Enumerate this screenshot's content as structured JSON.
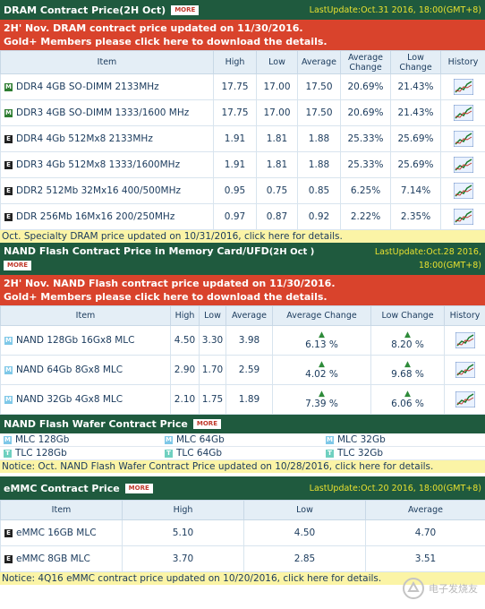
{
  "dram": {
    "title": "DRAM Contract Price(2H Oct)",
    "more": "MORE",
    "update": "LastUpdate:Oct.31 2016, 18:00(GMT+8)",
    "banner_line1_pre": "2H' Nov. DRAM contract price updated on ",
    "banner_line1_date": "11/30/2016.",
    "banner_line2": "Gold+ Members please click here to download the details.",
    "headers": [
      "Item",
      "High",
      "Low",
      "Average",
      "Average Change",
      "Low Change",
      "History"
    ],
    "rows": [
      {
        "icon": "M",
        "item": "DDR4 4GB SO-DIMM 2133MHz",
        "high": "17.75",
        "low": "17.00",
        "avg": "17.50",
        "avgchg": "20.69%",
        "lowchg": "21.43%"
      },
      {
        "icon": "M",
        "item": "DDR3 4GB SO-DIMM 1333/1600 MHz",
        "high": "17.75",
        "low": "17.00",
        "avg": "17.50",
        "avgchg": "20.69%",
        "lowchg": "21.43%"
      },
      {
        "icon": "E",
        "item": "DDR4 4Gb 512Mx8 2133MHz",
        "high": "1.91",
        "low": "1.81",
        "avg": "1.88",
        "avgchg": "25.33%",
        "lowchg": "25.69%"
      },
      {
        "icon": "E",
        "item": "DDR3 4Gb 512Mx8 1333/1600MHz",
        "high": "1.91",
        "low": "1.81",
        "avg": "1.88",
        "avgchg": "25.33%",
        "lowchg": "25.69%"
      },
      {
        "icon": "E",
        "item": "DDR2 512Mb 32Mx16 400/500MHz",
        "high": "0.95",
        "low": "0.75",
        "avg": "0.85",
        "avgchg": "6.25%",
        "lowchg": "7.14%"
      },
      {
        "icon": "E",
        "item": "DDR 256Mb 16Mx16 200/250MHz",
        "high": "0.97",
        "low": "0.87",
        "avg": "0.92",
        "avgchg": "2.22%",
        "lowchg": "2.35%"
      }
    ],
    "notice": "Oct. Specialty DRAM price updated on 10/31/2016, click here for details."
  },
  "nand": {
    "title": "NAND Flash Contract Price in Memory Card/UFD",
    "title_suffix": "(2H Oct )",
    "more": "MORE",
    "update1": "LastUpdate:Oct.28 2016,",
    "update2": "18:00(GMT+8)",
    "banner_line1_pre": "2H' Nov. NAND Flash contract price updated on ",
    "banner_line1_date": "11/30/2016.",
    "banner_line2": "Gold+ Members please click here to download the details.",
    "headers": [
      "Item",
      "High",
      "Low",
      "Average",
      "Average Change",
      "Low Change",
      "History"
    ],
    "rows": [
      {
        "item": "NAND 128Gb 16Gx8 MLC",
        "high": "4.50",
        "low": "3.30",
        "avg": "3.98",
        "avgchg": "6.13 %",
        "lowchg": "8.20 %"
      },
      {
        "item": "NAND 64Gb 8Gx8 MLC",
        "high": "2.90",
        "low": "1.70",
        "avg": "2.59",
        "avgchg": "4.02 %",
        "lowchg": "9.68 %"
      },
      {
        "item": "NAND 32Gb 4Gx8 MLC",
        "high": "2.10",
        "low": "1.75",
        "avg": "1.89",
        "avgchg": "7.39 %",
        "lowchg": "6.06 %"
      }
    ]
  },
  "wafer": {
    "title": "NAND Flash Wafer Contract Price",
    "more": "MORE",
    "items": [
      {
        "icon": "M",
        "label": "MLC 128Gb"
      },
      {
        "icon": "M",
        "label": "MLC 64Gb"
      },
      {
        "icon": "M",
        "label": "MLC 32Gb"
      },
      {
        "icon": "T",
        "label": "TLC 128Gb"
      },
      {
        "icon": "T",
        "label": "TLC 64Gb"
      },
      {
        "icon": "T",
        "label": "TLC 32Gb"
      }
    ],
    "notice": "Notice: Oct. NAND Flash Wafer Contract Price updated on 10/28/2016, click here for details."
  },
  "emmc": {
    "title": "eMMC Contract Price",
    "more": "MORE",
    "update": "LastUpdate:Oct.20 2016, 18:00(GMT+8)",
    "headers": [
      "Item",
      "High",
      "Low",
      "Average"
    ],
    "rows": [
      {
        "item": "eMMC 16GB MLC",
        "high": "5.10",
        "low": "4.50",
        "avg": "4.70"
      },
      {
        "item": "eMMC 8GB MLC",
        "high": "3.70",
        "low": "2.85",
        "avg": "3.51"
      }
    ],
    "notice": "Notice: 4Q16 eMMC contract price updated on 10/20/2016, click here for details."
  },
  "watermark": "电子发烧友",
  "icons": {
    "history": "history-chart-icon",
    "up": "up-arrow-icon"
  },
  "colors": {
    "header_bar": "#1f5a3e",
    "banner": "#d9432c",
    "notice": "#fbf4a6",
    "update_text": "#e8e030"
  }
}
